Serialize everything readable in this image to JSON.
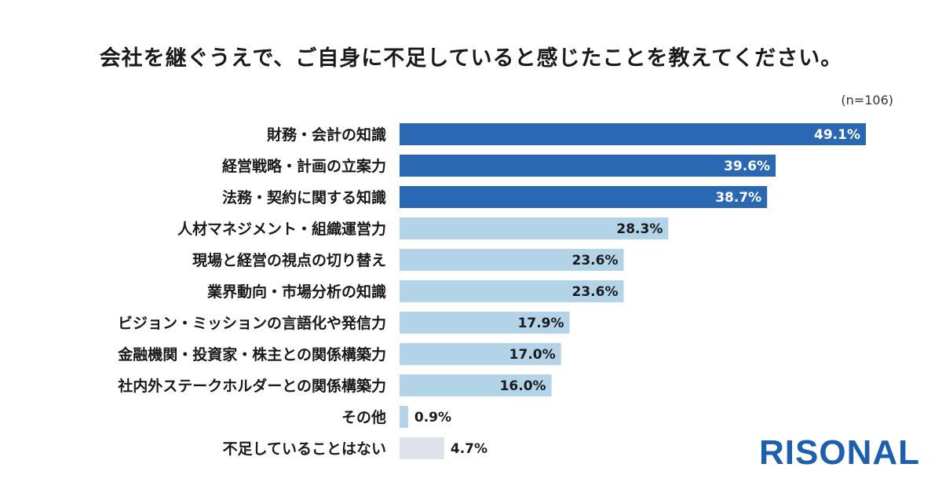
{
  "header": {
    "title": "会社を継ぐうえで、ご自身に不足していると感じたことを教えてください。",
    "sample_size": "(n=106)"
  },
  "logo": {
    "text": "RISONAL"
  },
  "colors": {
    "top": "#2b68b4",
    "mid": "#b3d3e8",
    "none": "#dfe2eb",
    "label_on_dark": "#ffffff",
    "label_dark": "#1a1a1a"
  },
  "chart_data": {
    "type": "bar",
    "orientation": "horizontal",
    "unit": "%",
    "categories": [
      "財務・会計の知識",
      "経営戦略・計画の立案力",
      "法務・契約に関する知識",
      "人材マネジメント・組織運営力",
      "現場と経営の視点の切り替え",
      "業界動向・市場分析の知識",
      "ビジョン・ミッションの言語化や発信力",
      "金融機関・投資家・株主との関係構築力",
      "社内外ステークホルダーとの関係構築力",
      "その他",
      "不足していることはない"
    ],
    "values": [
      49.1,
      39.6,
      38.7,
      28.3,
      23.6,
      23.6,
      17.9,
      17.0,
      16.0,
      0.9,
      4.7
    ],
    "value_labels": [
      "49.1%",
      "39.6%",
      "38.7%",
      "28.3%",
      "23.6%",
      "23.6%",
      "17.9%",
      "17.0%",
      "16.0%",
      "0.9%",
      "4.7%"
    ],
    "color_groups": [
      "top",
      "top",
      "top",
      "mid",
      "mid",
      "mid",
      "mid",
      "mid",
      "mid",
      "mid",
      "none"
    ],
    "xlim": [
      0,
      50
    ],
    "grid": false,
    "legend": "none"
  }
}
